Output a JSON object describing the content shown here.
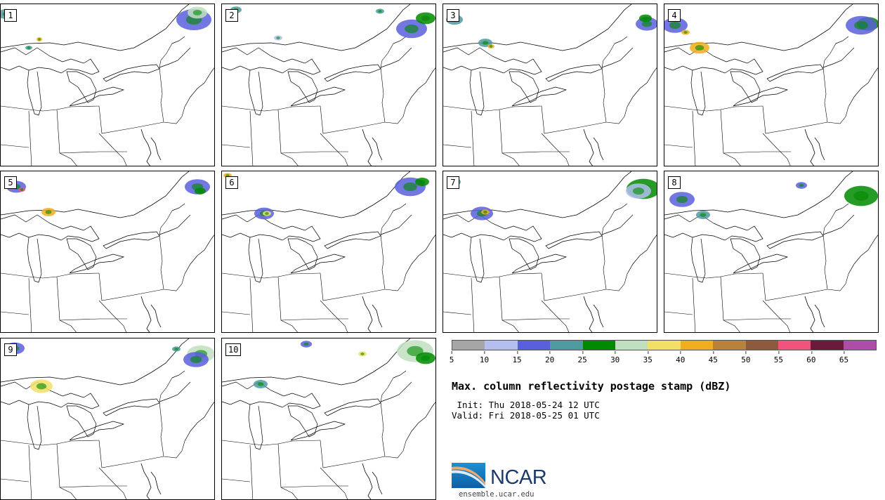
{
  "panels": [
    "1",
    "2",
    "3",
    "4",
    "5",
    "6",
    "7",
    "8",
    "9",
    "10"
  ],
  "colorbar": {
    "colors": [
      "#a6a6a6",
      "#b4bff0",
      "#5a5fdc",
      "#4d9aa1",
      "#008a00",
      "#bfdfbf",
      "#f2df6a",
      "#f1ad1f",
      "#b9823a",
      "#8c5a3e",
      "#f0547c",
      "#6c1a3c",
      "#ad4da9"
    ],
    "ticks": [
      "5",
      "10",
      "15",
      "20",
      "25",
      "30",
      "35",
      "40",
      "45",
      "50",
      "55",
      "60",
      "65"
    ]
  },
  "title": "Max. column reflectivity postage stamp (dBZ)",
  "init": " Init: Thu 2018-05-24 12 UTC",
  "valid": "Valid: Fri 2018-05-25 01 UTC",
  "logo": {
    "text": "NCAR",
    "url": "ensemble.ucar.edu"
  }
}
